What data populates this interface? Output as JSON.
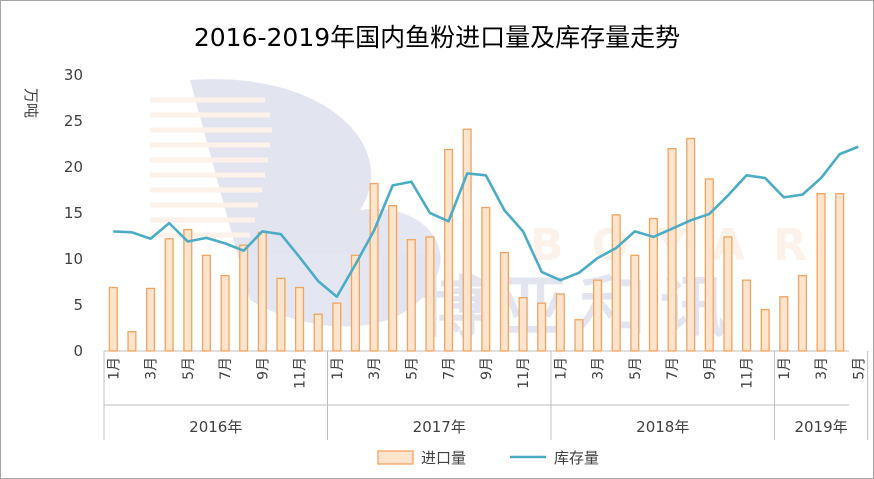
{
  "chart_data": {
    "type": "bar+line",
    "title": "2016-2019年国内鱼粉进口量及库存量走势",
    "ylabel": "万吨",
    "ylim": [
      0,
      30
    ],
    "yticks": [
      0,
      5,
      10,
      15,
      20,
      25,
      30
    ],
    "years": [
      {
        "label": "2016年",
        "months": 12
      },
      {
        "label": "2017年",
        "months": 12
      },
      {
        "label": "2018年",
        "months": 12
      },
      {
        "label": "2019年",
        "months": 5
      }
    ],
    "x_tick_labels": [
      "1月",
      "",
      "3月",
      "",
      "5月",
      "",
      "7月",
      "",
      "9月",
      "",
      "11月",
      "",
      "1月",
      "",
      "3月",
      "",
      "5月",
      "",
      "7月",
      "",
      "9月",
      "",
      "11月",
      "",
      "1月",
      "",
      "3月",
      "",
      "5月",
      "",
      "7月",
      "",
      "9月",
      "",
      "11月",
      "",
      "1月",
      "",
      "3月",
      "",
      "5月"
    ],
    "series": [
      {
        "name": "进口量",
        "kind": "bar",
        "color": "#f4a460",
        "values": [
          6.9,
          2.1,
          6.8,
          12.2,
          13.2,
          10.4,
          8.2,
          11.5,
          12.9,
          7.9,
          6.9,
          4.0,
          5.2,
          10.4,
          18.2,
          15.8,
          12.1,
          12.4,
          21.9,
          24.1,
          15.6,
          10.7,
          5.8,
          5.2,
          6.2,
          3.4,
          7.7,
          14.8,
          10.4,
          14.4,
          22.0,
          23.1,
          18.7,
          12.4,
          7.7,
          4.5,
          5.9,
          8.2,
          17.1,
          17.1
        ]
      },
      {
        "name": "库存量",
        "kind": "line",
        "color": "#4bacc6",
        "values": [
          13.0,
          12.9,
          12.2,
          13.9,
          11.9,
          12.3,
          11.7,
          10.9,
          13.0,
          12.7,
          10.2,
          7.6,
          5.9,
          9.4,
          13.1,
          18.0,
          18.4,
          15.0,
          14.1,
          19.3,
          19.1,
          15.3,
          13.0,
          8.6,
          7.7,
          8.5,
          10.1,
          11.2,
          13.0,
          12.4,
          13.3,
          14.2,
          14.9,
          16.9,
          19.1,
          18.8,
          16.7,
          17.0,
          18.8,
          21.4,
          22.2
        ]
      }
    ],
    "legend_position": "bottom",
    "grid": false
  }
}
